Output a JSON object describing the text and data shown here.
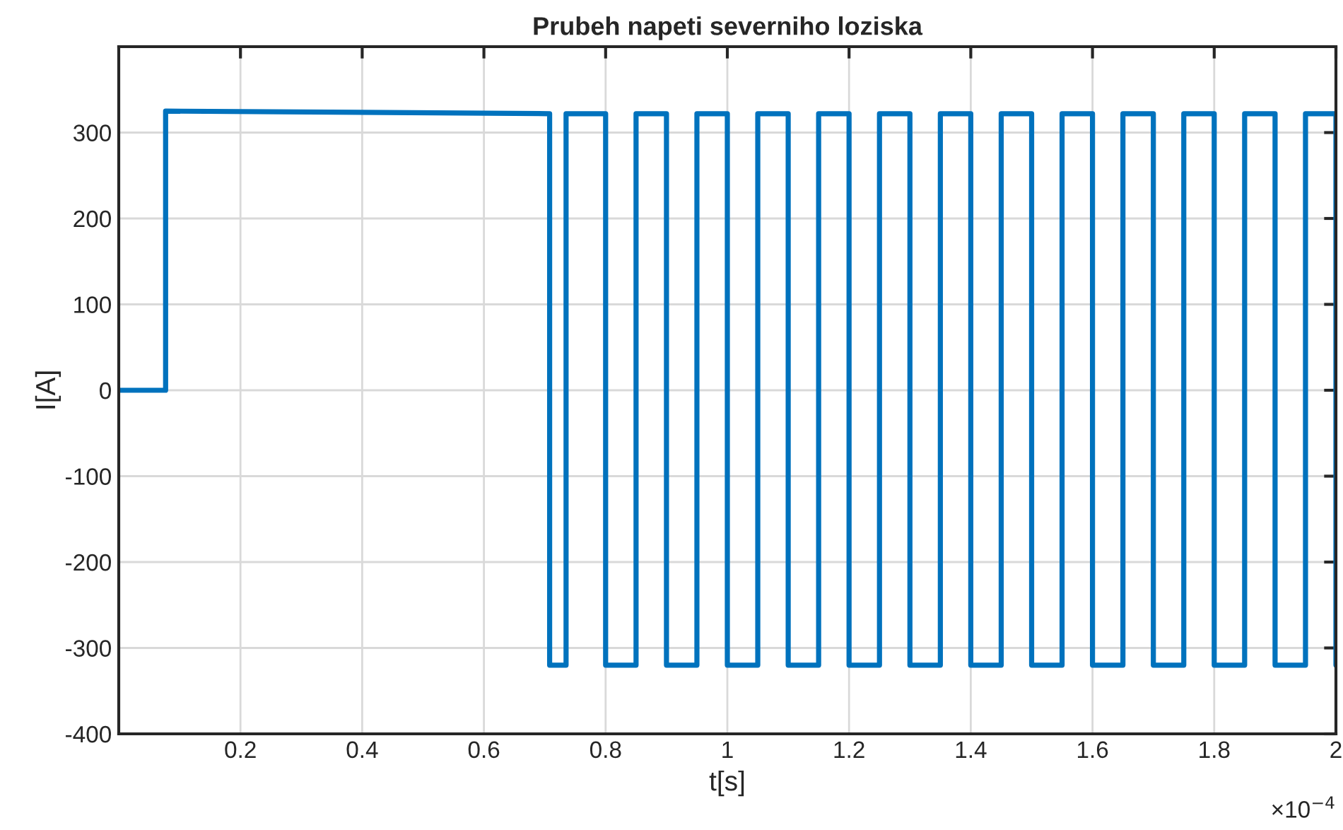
{
  "chart_data": {
    "type": "line",
    "title": "Prubeh napeti severniho loziska",
    "xlabel": "t[s]",
    "ylabel": "I[A]",
    "x": [
      0,
      0.077,
      0.077,
      0.708,
      0.708,
      0.735,
      0.735,
      0.8,
      0.8,
      0.85,
      0.85,
      0.9,
      0.9,
      0.95,
      0.95,
      1.0,
      1.0,
      1.05,
      1.05,
      1.1,
      1.1,
      1.15,
      1.15,
      1.2,
      1.2,
      1.25,
      1.25,
      1.3,
      1.3,
      1.35,
      1.35,
      1.4,
      1.4,
      1.45,
      1.45,
      1.5,
      1.5,
      1.55,
      1.55,
      1.6,
      1.6,
      1.65,
      1.65,
      1.7,
      1.7,
      1.75,
      1.75,
      1.8,
      1.8,
      1.85,
      1.85,
      1.9,
      1.9,
      1.95,
      1.95,
      2.0,
      2.0
    ],
    "series": [
      {
        "color": "#0072bd",
        "values": [
          0,
          0,
          325,
          322,
          -320,
          -320,
          322,
          322,
          -320,
          -320,
          322,
          322,
          -320,
          -320,
          322,
          322,
          -320,
          -320,
          322,
          322,
          -320,
          -320,
          322,
          322,
          -320,
          -320,
          322,
          322,
          -320,
          -320,
          322,
          322,
          -320,
          -320,
          322,
          322,
          -320,
          -320,
          322,
          322,
          -320,
          -320,
          322,
          322,
          -320,
          -320,
          322,
          322,
          -320,
          -320,
          322,
          322,
          -320,
          -320,
          322,
          322,
          -320
        ]
      }
    ],
    "xlim": [
      0,
      2
    ],
    "ylim": [
      -400,
      400
    ],
    "xticks": [
      0.2,
      0.4,
      0.6,
      0.8,
      1,
      1.2,
      1.4,
      1.6,
      1.8,
      2
    ],
    "yticks": [
      -400,
      -300,
      -200,
      -100,
      0,
      100,
      200,
      300
    ],
    "annotations": [
      "×10$^{−4}$"
    ],
    "grid": true,
    "legend": false,
    "marker": "none",
    "line_style": "solid"
  }
}
